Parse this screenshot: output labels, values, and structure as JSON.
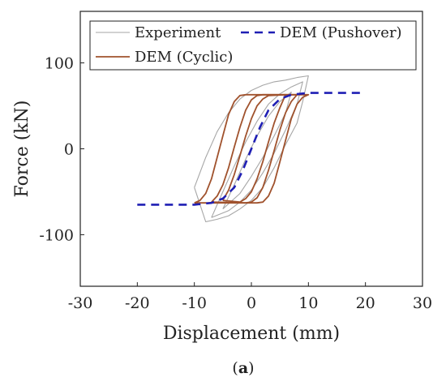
{
  "chart_data": {
    "type": "line",
    "xlabel": "Displacement (mm)",
    "ylabel": "Force (kN)",
    "xlim": [
      -30,
      30
    ],
    "ylim": [
      -160,
      160
    ],
    "xticks": [
      -30,
      -20,
      -10,
      0,
      10,
      20,
      30
    ],
    "yticks": [
      -100,
      0,
      100
    ],
    "grid": false,
    "legend": "top, inside",
    "caption": {
      "open": "(",
      "letter": "a",
      "close": ")"
    },
    "series": [
      {
        "name": "Experiment",
        "style": "solid-thin",
        "color": "#a6a6a6",
        "loops": [
          {
            "upper": [
              [
                -10,
                -45
              ],
              [
                -8,
                -10
              ],
              [
                -6,
                20
              ],
              [
                -4,
                42
              ],
              [
                -2,
                58
              ],
              [
                0,
                68
              ],
              [
                2,
                74
              ],
              [
                4,
                78
              ],
              [
                6,
                80
              ],
              [
                8,
                83
              ],
              [
                10,
                85
              ]
            ],
            "lower": [
              [
                10,
                85
              ],
              [
                9,
                55
              ],
              [
                8,
                30
              ],
              [
                6,
                5
              ],
              [
                4,
                -22
              ],
              [
                2,
                -45
              ],
              [
                0,
                -60
              ],
              [
                -2,
                -70
              ],
              [
                -4,
                -78
              ],
              [
                -6,
                -82
              ],
              [
                -8,
                -85
              ],
              [
                -10,
                -45
              ]
            ]
          },
          {
            "upper": [
              [
                -7,
                -80
              ],
              [
                -5,
                -50
              ],
              [
                -3,
                -20
              ],
              [
                -1,
                8
              ],
              [
                1,
                32
              ],
              [
                3,
                52
              ],
              [
                5,
                64
              ],
              [
                7,
                72
              ],
              [
                9,
                78
              ]
            ],
            "lower": [
              [
                9,
                78
              ],
              [
                8,
                52
              ],
              [
                6,
                22
              ],
              [
                4,
                -5
              ],
              [
                2,
                -28
              ],
              [
                0,
                -48
              ],
              [
                -2,
                -62
              ],
              [
                -4,
                -72
              ],
              [
                -7,
                -80
              ]
            ]
          },
          {
            "upper": [
              [
                -5,
                -70
              ],
              [
                -3,
                -42
              ],
              [
                -1,
                -12
              ],
              [
                1,
                15
              ],
              [
                3,
                38
              ],
              [
                5,
                55
              ],
              [
                7,
                66
              ]
            ],
            "lower": [
              [
                7,
                66
              ],
              [
                6,
                42
              ],
              [
                4,
                15
              ],
              [
                2,
                -10
              ],
              [
                0,
                -32
              ],
              [
                -2,
                -52
              ],
              [
                -5,
                -70
              ]
            ]
          }
        ]
      },
      {
        "name": "DEM (Pushover)",
        "style": "dashed",
        "color": "#1f1fb4",
        "points": [
          [
            -20,
            -65
          ],
          [
            -10,
            -65
          ],
          [
            -7,
            -63
          ],
          [
            -5,
            -58
          ],
          [
            -3,
            -45
          ],
          [
            -1.5,
            -25
          ],
          [
            0,
            0
          ],
          [
            1.5,
            25
          ],
          [
            3,
            45
          ],
          [
            5,
            58
          ],
          [
            7,
            63
          ],
          [
            10,
            65
          ],
          [
            20,
            65
          ]
        ]
      },
      {
        "name": "DEM (Cyclic)",
        "style": "solid",
        "color": "#a0522d",
        "loops": [
          {
            "upper": [
              [
                -10,
                -63
              ],
              [
                -9,
                -60
              ],
              [
                -8,
                -52
              ],
              [
                -7,
                -35
              ],
              [
                -6,
                -10
              ],
              [
                -5,
                15
              ],
              [
                -4,
                40
              ],
              [
                -3,
                55
              ],
              [
                -2,
                62
              ],
              [
                -1,
                63
              ],
              [
                10,
                63
              ]
            ],
            "lower": [
              [
                10,
                63
              ],
              [
                9,
                60
              ],
              [
                8,
                52
              ],
              [
                7,
                35
              ],
              [
                6,
                10
              ],
              [
                5,
                -15
              ],
              [
                4,
                -40
              ],
              [
                3,
                -55
              ],
              [
                2,
                -62
              ],
              [
                1,
                -63
              ],
              [
                -10,
                -63
              ]
            ]
          },
          {
            "upper": [
              [
                -7,
                -62
              ],
              [
                -6,
                -55
              ],
              [
                -5,
                -42
              ],
              [
                -4,
                -22
              ],
              [
                -3,
                2
              ],
              [
                -2,
                25
              ],
              [
                -1,
                45
              ],
              [
                0,
                57
              ],
              [
                1,
                62
              ],
              [
                2,
                63
              ],
              [
                8,
                63
              ]
            ],
            "lower": [
              [
                8,
                63
              ],
              [
                7,
                55
              ],
              [
                6,
                42
              ],
              [
                5,
                22
              ],
              [
                4,
                -2
              ],
              [
                3,
                -25
              ],
              [
                2,
                -45
              ],
              [
                1,
                -57
              ],
              [
                0,
                -62
              ],
              [
                -1,
                -63
              ],
              [
                -7,
                -62
              ]
            ]
          },
          {
            "upper": [
              [
                -5,
                -60
              ],
              [
                -4,
                -48
              ],
              [
                -3,
                -30
              ],
              [
                -2,
                -8
              ],
              [
                -1,
                15
              ],
              [
                0,
                35
              ],
              [
                1,
                50
              ],
              [
                2,
                58
              ],
              [
                3,
                62
              ],
              [
                6,
                63
              ]
            ],
            "lower": [
              [
                6,
                63
              ],
              [
                5,
                48
              ],
              [
                4,
                30
              ],
              [
                3,
                8
              ],
              [
                2,
                -15
              ],
              [
                1,
                -35
              ],
              [
                0,
                -50
              ],
              [
                -1,
                -58
              ],
              [
                -2,
                -62
              ],
              [
                -5,
                -60
              ]
            ]
          }
        ]
      }
    ]
  }
}
